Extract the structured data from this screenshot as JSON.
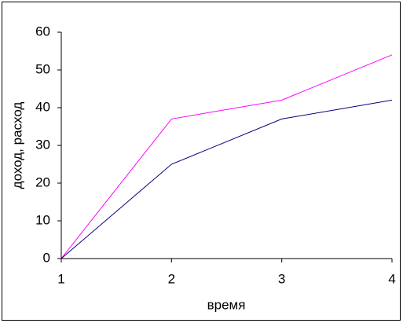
{
  "chart_data": {
    "type": "line",
    "x_label": "время",
    "y_label": "доход, расход",
    "x": [
      1,
      2,
      3,
      4
    ],
    "xlim": [
      1,
      4
    ],
    "xticks": [
      1,
      2,
      3,
      4
    ],
    "ylim": [
      0,
      60
    ],
    "yticks": [
      0,
      10,
      20,
      30,
      40,
      50,
      60
    ],
    "grid": false,
    "series": [
      {
        "color": "#ff00ff",
        "values": [
          0,
          37,
          42,
          54
        ]
      },
      {
        "color": "#000080",
        "values": [
          0,
          25,
          37,
          42
        ]
      }
    ]
  }
}
